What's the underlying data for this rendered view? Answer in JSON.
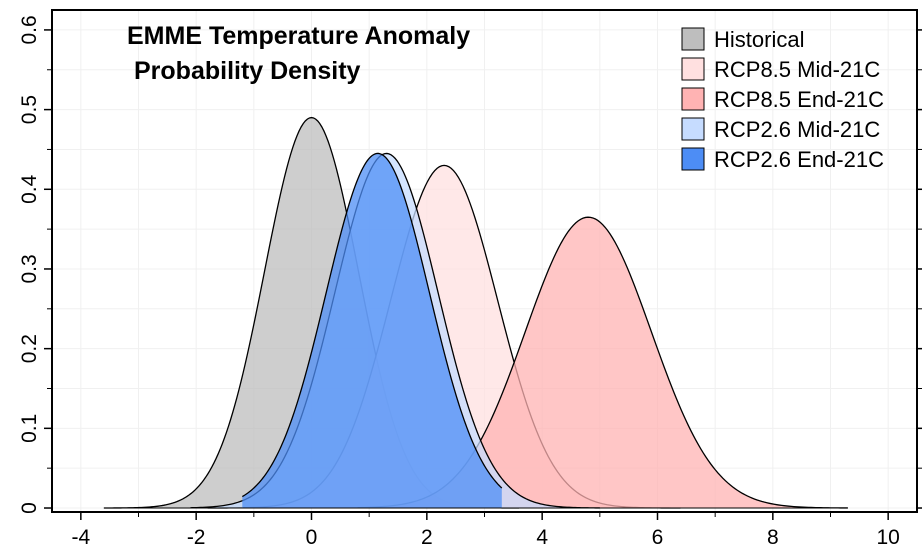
{
  "chart_data": {
    "type": "area",
    "title_lines": [
      "EMME Temperature Anomaly",
      "Probability Density"
    ],
    "xlabel": "",
    "ylabel": "",
    "xlim": [
      -4.5,
      10.5
    ],
    "ylim": [
      -0.005,
      0.625
    ],
    "x_ticks": [
      -4,
      -2,
      0,
      2,
      4,
      6,
      8,
      10
    ],
    "x_tick_labels": [
      "-4",
      "-2",
      "0",
      "2",
      "4",
      "6",
      "8",
      "10"
    ],
    "y_ticks": [
      0,
      0.1,
      0.2,
      0.3,
      0.4,
      0.5,
      0.6
    ],
    "y_tick_labels": [
      "0",
      "0.1",
      "0.2",
      "0.3",
      "0.4",
      "0.5",
      "0.6"
    ],
    "grid": true,
    "legend_position": "top-right",
    "series": [
      {
        "name": "Historical",
        "distribution": "normal",
        "mean": 0.0,
        "peak_density": 0.49,
        "x_range": [
          -3.6,
          3.6
        ],
        "color": "#bebebe"
      },
      {
        "name": "RCP8.5 Mid-21C",
        "distribution": "normal",
        "mean": 2.3,
        "peak_density": 0.43,
        "x_range": [
          -1.8,
          6.4
        ],
        "color": "#ffe0e0"
      },
      {
        "name": "RCP8.5 End-21C",
        "distribution": "normal",
        "mean": 4.8,
        "peak_density": 0.365,
        "x_range": [
          0.8,
          9.3
        ],
        "color": "#ffb3b3"
      },
      {
        "name": "RCP2.6 Mid-21C",
        "distribution": "normal",
        "mean": 1.3,
        "peak_density": 0.445,
        "x_range": [
          -2.1,
          5.0
        ],
        "color": "#c6dcff"
      },
      {
        "name": "RCP2.6 End-21C",
        "distribution": "normal",
        "mean": 1.15,
        "peak_density": 0.445,
        "x_range": [
          -1.2,
          3.3
        ],
        "color": "#4d8df5"
      }
    ]
  }
}
